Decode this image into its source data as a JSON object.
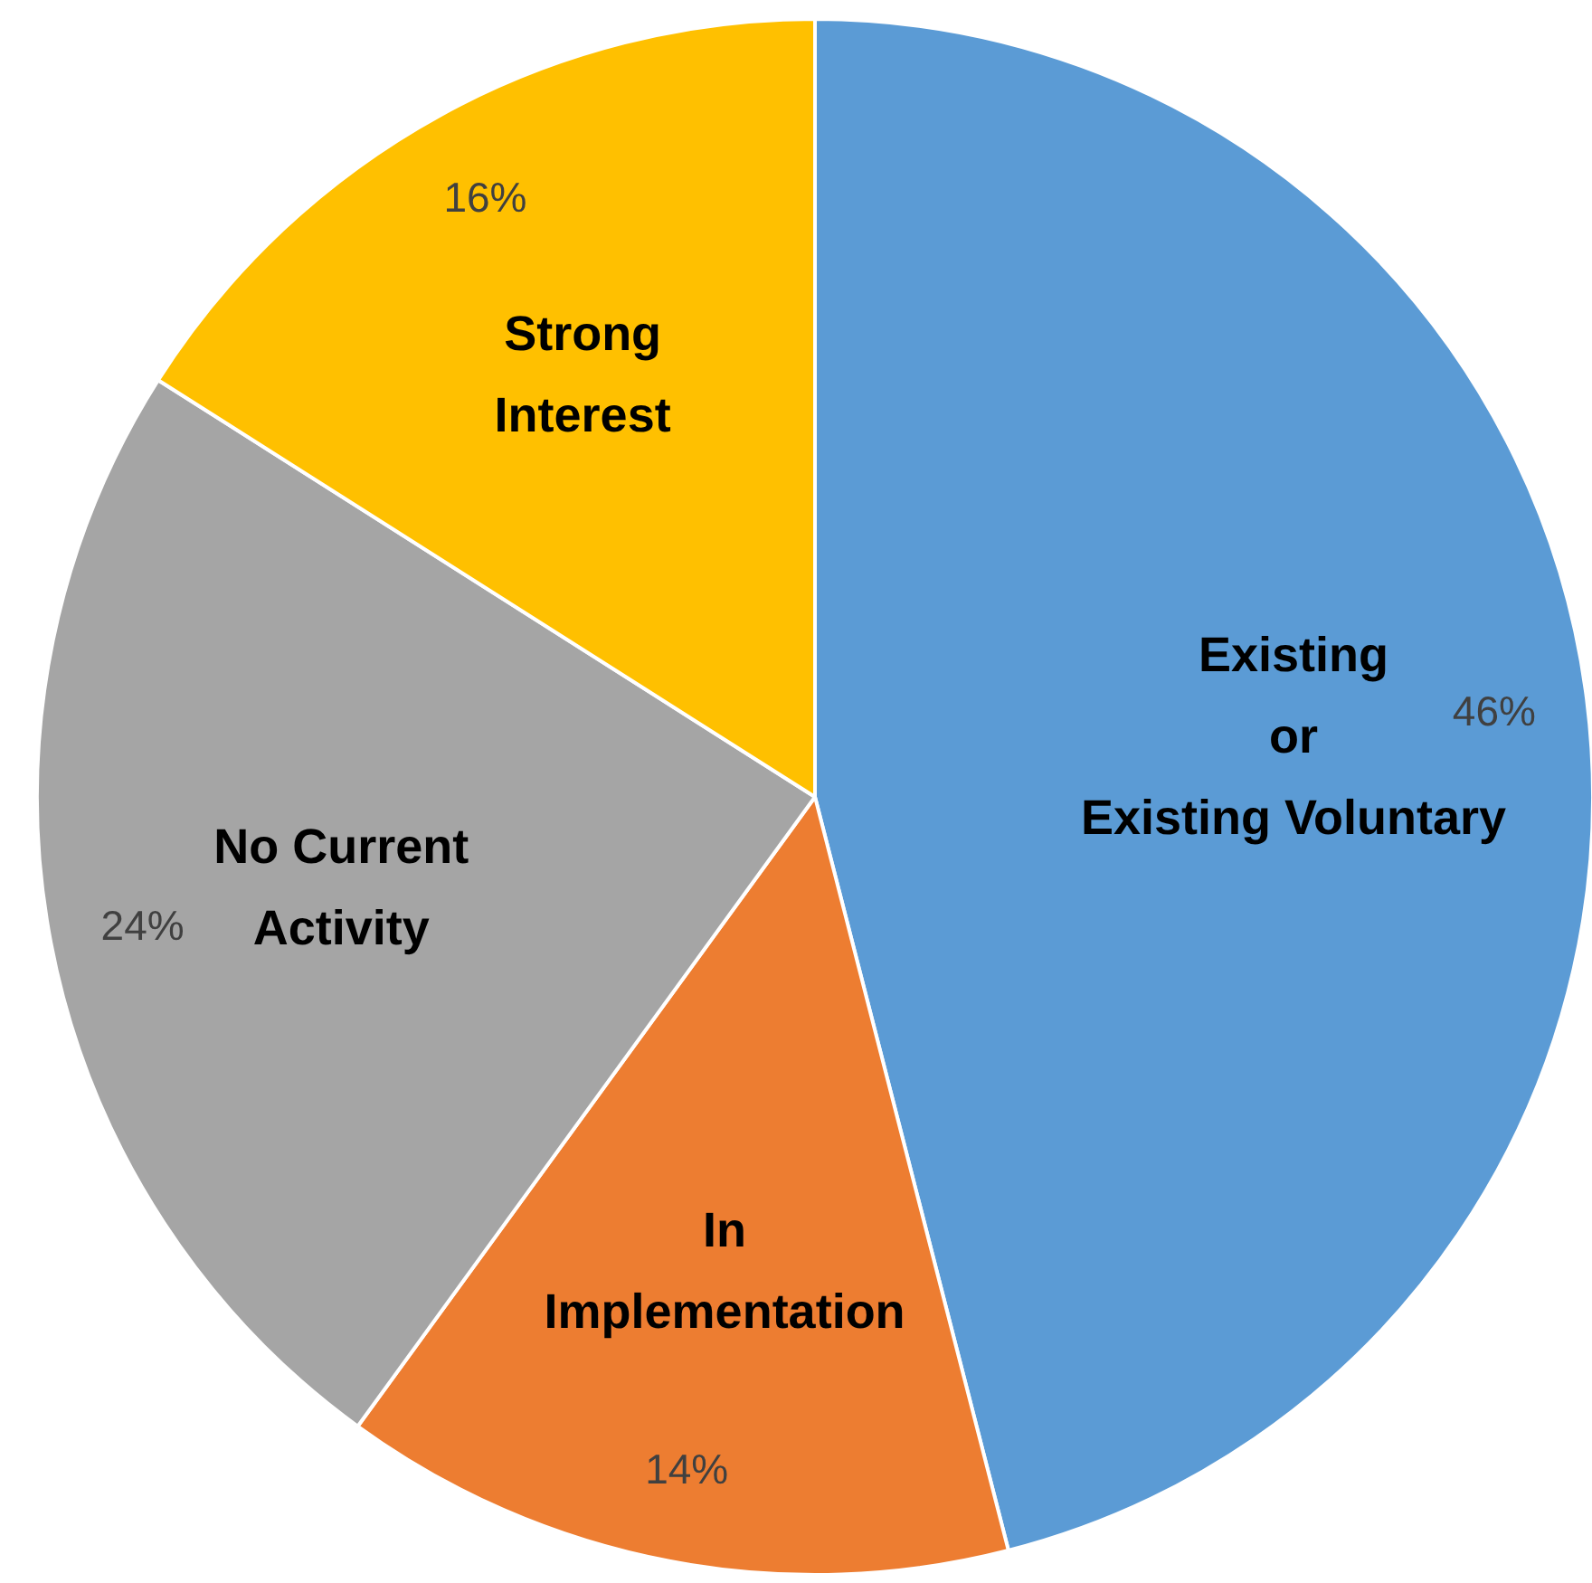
{
  "chart_data": {
    "type": "pie",
    "categories": [
      "Existing\nor\nExisting Voluntary",
      "In\nImplementation",
      "No Current\nActivity",
      "Strong\nInterest"
    ],
    "values": [
      46,
      14,
      24,
      16
    ],
    "colors": [
      "#5b9bd5",
      "#ed7d31",
      "#a5a5a5",
      "#ffc000"
    ],
    "value_labels": [
      "46%",
      "14%",
      "24%",
      "16%"
    ]
  }
}
